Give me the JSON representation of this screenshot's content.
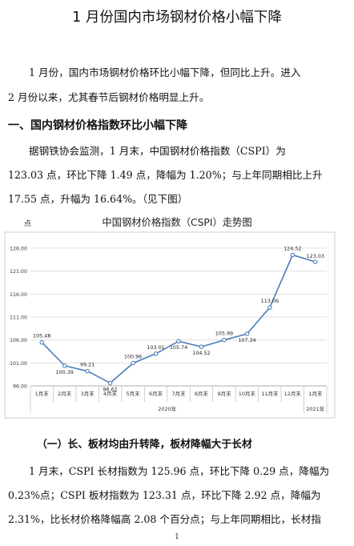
{
  "document": {
    "title": "1 月份国内市场钢材价格小幅下降",
    "intro_line1": "1 月份，国内市场钢材价格环比小幅下降，但同比上升。进入",
    "intro_line2": "2 月份以来，尤其春节后钢材价格明显上升。",
    "section1_heading": "一、国内钢材价格指数环比小幅下降",
    "s1_line1": "据钢铁协会监测，1 月末，中国钢材价格指数（CSPI）为",
    "s1_line2": "123.03 点，环比下降 1.49 点，降幅为 1.20%；与上年同期相比上升",
    "s1_line3": "17.55 点，升幅为 16.64%。（见下图）",
    "subsection1_heading": "（一）长、板材均由升转降，板材降幅大于长材",
    "s2_line1": "1 月末，CSPI 长材指数为 125.96 点，环比下降 0.29 点，降幅为",
    "s2_line2": "0.23%点；CSPI 板材指数为 123.31 点，环比下降 2.92 点，降幅为",
    "s2_line3": "2.31%，比长材价格降幅高 2.08 个百分点；与上年同期相比，长材指",
    "page_number": "1"
  },
  "chart_data": {
    "type": "line",
    "title": "中国钢材价格指数（CSPI）走势图",
    "ylabel": "点",
    "categories": [
      "1月末",
      "2月末",
      "3月末",
      "4月末",
      "5月末",
      "6月末",
      "7月末",
      "8月末",
      "9月末",
      "10月末",
      "11月末",
      "12月末",
      "1月末"
    ],
    "year_groups": [
      {
        "label": "2020年",
        "count": 12
      },
      {
        "label": "2021年",
        "count": 1
      }
    ],
    "values": [
      105.48,
      100.39,
      99.21,
      96.62,
      100.96,
      103.01,
      105.74,
      104.52,
      105.99,
      107.34,
      113.06,
      124.52,
      123.03
    ],
    "value_labels": [
      "105.48",
      "100.39",
      "99.21",
      "96.62",
      "100.96",
      "103.01",
      "105.74",
      "104.52",
      "105.99",
      "107.34",
      "113.06",
      "124.52",
      "123.03"
    ],
    "yticks": [
      96.0,
      101.0,
      106.0,
      111.0,
      116.0,
      121.0,
      126.0
    ],
    "ytick_labels": [
      "96.00",
      "101.00",
      "106.00",
      "111.00",
      "116.00",
      "121.00",
      "126.00"
    ],
    "ylim": [
      96,
      126
    ],
    "grid": true,
    "colors": {
      "line": "#4a7ebb",
      "marker_fill": "#ffffff",
      "grid": "#d9d9d9"
    }
  }
}
